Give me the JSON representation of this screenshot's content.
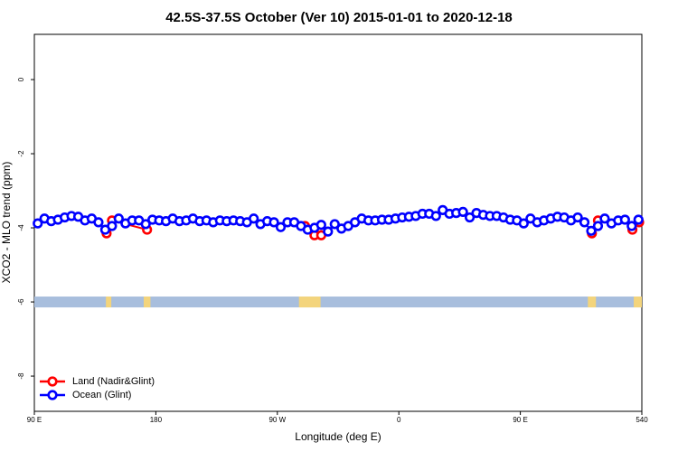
{
  "chart_data": {
    "type": "line",
    "title": "42.5S-37.5S October (Ver 10)   2015-01-01 to 2020-12-18",
    "x_label": "Longitude (deg E)",
    "y_label": "XCO2 - MLO trend (ppm)",
    "xlim": [
      90,
      540
    ],
    "ylim": [
      -8.95,
      1.22
    ],
    "xticks": [
      {
        "value": 90,
        "label": "90 E"
      },
      180,
      {
        "value": 270,
        "label": "90 W"
      },
      {
        "value": 360,
        "label": "0"
      },
      {
        "value": 450,
        "label": "90 E"
      },
      540
    ],
    "yticks": [
      -8,
      -6,
      -4,
      -2,
      0
    ],
    "legend": "bottom-left",
    "mask": {
      "y": -6,
      "ocean_color": "#a8bedd",
      "land_color": "#f3d47c",
      "land_ranges": [
        [
          143,
          147
        ],
        [
          171,
          176
        ],
        [
          286,
          302
        ],
        [
          500,
          506
        ],
        [
          534,
          540
        ]
      ]
    },
    "series": [
      {
        "name": "Land (Nadir&Glint)",
        "color": "#ff0000",
        "x": [
          143.5,
          147.5,
          173.5,
          230,
          290.5,
          297.5,
          302.5,
          400,
          503,
          507.5,
          520,
          533,
          538
        ],
        "values": [
          -4.15,
          -3.8,
          -4.05,
          null,
          -3.95,
          -4.2,
          -4.2,
          null,
          -4.15,
          -3.8,
          null,
          -4.05,
          -3.85
        ]
      },
      {
        "name": "Ocean (Glint)",
        "color": "#0000ff",
        "x": [
          92.5,
          97.5,
          102.5,
          107.5,
          112.5,
          117.5,
          122.5,
          127.5,
          132.5,
          137.5,
          142.5,
          147.5,
          152.5,
          157.5,
          162.5,
          167.5,
          172.5,
          177.5,
          182.5,
          187.5,
          192.5,
          197.5,
          202.5,
          207.5,
          212.5,
          217.5,
          222.5,
          227.5,
          232.5,
          237.5,
          242.5,
          247.5,
          252.5,
          257.5,
          262.5,
          267.5,
          272.5,
          277.5,
          282.5,
          287.5,
          292.5,
          297.5,
          302.5,
          307.5,
          312.5,
          317.5,
          322.5,
          327.5,
          332.5,
          337.5,
          342.5,
          347.5,
          352.5,
          357.5,
          362.5,
          367.5,
          372.5,
          377.5,
          382.5,
          387.5,
          392.5,
          397.5,
          402.5,
          407.5,
          412.5,
          417.5,
          422.5,
          427.5,
          432.5,
          437.5,
          442.5,
          447.5,
          452.5,
          457.5,
          462.5,
          467.5,
          472.5,
          477.5,
          482.5,
          487.5,
          492.5,
          497.5,
          502.5,
          507.5,
          512.5,
          517.5,
          522.5,
          527.5,
          532.5,
          537.5
        ],
        "values": [
          -3.88,
          -3.75,
          -3.82,
          -3.78,
          -3.72,
          -3.68,
          -3.7,
          -3.8,
          -3.75,
          -3.85,
          -4.05,
          -3.95,
          -3.75,
          -3.88,
          -3.8,
          -3.8,
          -3.9,
          -3.78,
          -3.8,
          -3.82,
          -3.75,
          -3.82,
          -3.8,
          -3.75,
          -3.82,
          -3.8,
          -3.85,
          -3.8,
          -3.82,
          -3.8,
          -3.82,
          -3.85,
          -3.75,
          -3.9,
          -3.82,
          -3.85,
          -3.98,
          -3.85,
          -3.85,
          -3.95,
          -4.05,
          -4.0,
          -3.92,
          -4.1,
          -3.9,
          -4.02,
          -3.95,
          -3.85,
          -3.75,
          -3.8,
          -3.8,
          -3.78,
          -3.78,
          -3.75,
          -3.72,
          -3.7,
          -3.68,
          -3.62,
          -3.62,
          -3.68,
          -3.52,
          -3.62,
          -3.6,
          -3.57,
          -3.72,
          -3.6,
          -3.65,
          -3.68,
          -3.68,
          -3.72,
          -3.78,
          -3.8,
          -3.88,
          -3.75,
          -3.85,
          -3.8,
          -3.75,
          -3.7,
          -3.72,
          -3.8,
          -3.72,
          -3.85,
          -4.08,
          -3.95,
          -3.75,
          -3.88,
          -3.8,
          -3.78,
          -3.95,
          -3.78
        ]
      }
    ]
  }
}
